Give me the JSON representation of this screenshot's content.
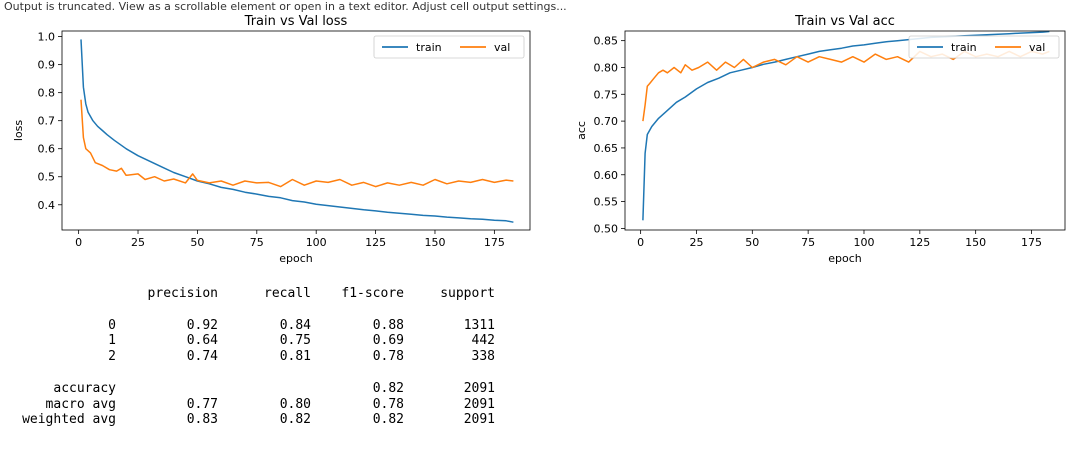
{
  "caption": "Output is truncated. View as a scrollable element or open in a text editor. Adjust cell output settings...",
  "chart_data": [
    {
      "type": "line",
      "title": "Train vs Val loss",
      "xlabel": "epoch",
      "ylabel": "loss",
      "xlim": [
        -7,
        190
      ],
      "ylim": [
        0.31,
        1.02
      ],
      "xticks": [
        0,
        25,
        50,
        75,
        100,
        125,
        150,
        175
      ],
      "yticks": [
        0.4,
        0.5,
        0.6,
        0.7,
        0.8,
        0.9,
        1.0
      ],
      "ytick_labels": [
        "0.4",
        "0.5",
        "0.6",
        "0.7",
        "0.8",
        "0.9",
        "1.0"
      ],
      "grid": false,
      "legend_position": "top-right",
      "series": [
        {
          "name": "train",
          "color": "#1f77b4",
          "points": [
            [
              1,
              0.99
            ],
            [
              2,
              0.82
            ],
            [
              3,
              0.76
            ],
            [
              4,
              0.73
            ],
            [
              6,
              0.7
            ],
            [
              8,
              0.68
            ],
            [
              10,
              0.665
            ],
            [
              12,
              0.65
            ],
            [
              15,
              0.63
            ],
            [
              20,
              0.6
            ],
            [
              25,
              0.575
            ],
            [
              30,
              0.555
            ],
            [
              35,
              0.535
            ],
            [
              40,
              0.515
            ],
            [
              45,
              0.5
            ],
            [
              50,
              0.485
            ],
            [
              55,
              0.475
            ],
            [
              60,
              0.462
            ],
            [
              65,
              0.455
            ],
            [
              70,
              0.445
            ],
            [
              75,
              0.438
            ],
            [
              80,
              0.43
            ],
            [
              85,
              0.425
            ],
            [
              90,
              0.415
            ],
            [
              95,
              0.41
            ],
            [
              100,
              0.402
            ],
            [
              105,
              0.397
            ],
            [
              110,
              0.392
            ],
            [
              115,
              0.387
            ],
            [
              120,
              0.382
            ],
            [
              125,
              0.378
            ],
            [
              130,
              0.373
            ],
            [
              135,
              0.37
            ],
            [
              140,
              0.366
            ],
            [
              145,
              0.362
            ],
            [
              150,
              0.36
            ],
            [
              155,
              0.356
            ],
            [
              160,
              0.353
            ],
            [
              165,
              0.35
            ],
            [
              170,
              0.348
            ],
            [
              175,
              0.345
            ],
            [
              180,
              0.343
            ],
            [
              183,
              0.338
            ]
          ]
        },
        {
          "name": "val",
          "color": "#ff7f0e",
          "points": [
            [
              1,
              0.775
            ],
            [
              2,
              0.64
            ],
            [
              3,
              0.6
            ],
            [
              5,
              0.585
            ],
            [
              7,
              0.55
            ],
            [
              10,
              0.54
            ],
            [
              13,
              0.525
            ],
            [
              16,
              0.52
            ],
            [
              18,
              0.53
            ],
            [
              20,
              0.505
            ],
            [
              25,
              0.51
            ],
            [
              28,
              0.49
            ],
            [
              32,
              0.5
            ],
            [
              36,
              0.485
            ],
            [
              40,
              0.492
            ],
            [
              45,
              0.478
            ],
            [
              48,
              0.51
            ],
            [
              50,
              0.487
            ],
            [
              55,
              0.478
            ],
            [
              60,
              0.485
            ],
            [
              65,
              0.47
            ],
            [
              70,
              0.485
            ],
            [
              75,
              0.478
            ],
            [
              80,
              0.48
            ],
            [
              85,
              0.465
            ],
            [
              90,
              0.49
            ],
            [
              95,
              0.47
            ],
            [
              100,
              0.485
            ],
            [
              105,
              0.48
            ],
            [
              110,
              0.49
            ],
            [
              115,
              0.47
            ],
            [
              120,
              0.48
            ],
            [
              125,
              0.465
            ],
            [
              130,
              0.478
            ],
            [
              135,
              0.47
            ],
            [
              140,
              0.48
            ],
            [
              145,
              0.47
            ],
            [
              150,
              0.49
            ],
            [
              155,
              0.475
            ],
            [
              160,
              0.485
            ],
            [
              165,
              0.48
            ],
            [
              170,
              0.49
            ],
            [
              175,
              0.48
            ],
            [
              180,
              0.488
            ],
            [
              183,
              0.485
            ]
          ]
        }
      ]
    },
    {
      "type": "line",
      "title": "Train vs Val acc",
      "xlabel": "epoch",
      "ylabel": "acc",
      "xlim": [
        -7,
        190
      ],
      "ylim": [
        0.497,
        0.868
      ],
      "xticks": [
        0,
        25,
        50,
        75,
        100,
        125,
        150,
        175
      ],
      "yticks": [
        0.5,
        0.55,
        0.6,
        0.65,
        0.7,
        0.75,
        0.8,
        0.85
      ],
      "ytick_labels": [
        "0.50",
        "0.55",
        "0.60",
        "0.65",
        "0.70",
        "0.75",
        "0.80",
        "0.85"
      ],
      "grid": false,
      "legend_position": "top-right",
      "series": [
        {
          "name": "train",
          "color": "#1f77b4",
          "points": [
            [
              1,
              0.515
            ],
            [
              2,
              0.64
            ],
            [
              3,
              0.675
            ],
            [
              5,
              0.69
            ],
            [
              8,
              0.705
            ],
            [
              12,
              0.72
            ],
            [
              16,
              0.735
            ],
            [
              20,
              0.745
            ],
            [
              25,
              0.76
            ],
            [
              30,
              0.772
            ],
            [
              35,
              0.78
            ],
            [
              40,
              0.79
            ],
            [
              45,
              0.795
            ],
            [
              50,
              0.8
            ],
            [
              55,
              0.806
            ],
            [
              60,
              0.81
            ],
            [
              65,
              0.815
            ],
            [
              70,
              0.82
            ],
            [
              75,
              0.825
            ],
            [
              80,
              0.83
            ],
            [
              85,
              0.833
            ],
            [
              90,
              0.836
            ],
            [
              95,
              0.84
            ],
            [
              100,
              0.842
            ],
            [
              105,
              0.845
            ],
            [
              110,
              0.848
            ],
            [
              115,
              0.85
            ],
            [
              120,
              0.852
            ],
            [
              125,
              0.854
            ],
            [
              130,
              0.856
            ],
            [
              135,
              0.857
            ],
            [
              140,
              0.858
            ],
            [
              145,
              0.859
            ],
            [
              150,
              0.86
            ],
            [
              155,
              0.861
            ],
            [
              160,
              0.862
            ],
            [
              165,
              0.863
            ],
            [
              170,
              0.864
            ],
            [
              175,
              0.865
            ],
            [
              180,
              0.866
            ],
            [
              183,
              0.867
            ]
          ]
        },
        {
          "name": "val",
          "color": "#ff7f0e",
          "points": [
            [
              1,
              0.7
            ],
            [
              2,
              0.73
            ],
            [
              3,
              0.765
            ],
            [
              4,
              0.77
            ],
            [
              6,
              0.78
            ],
            [
              8,
              0.79
            ],
            [
              10,
              0.795
            ],
            [
              12,
              0.79
            ],
            [
              15,
              0.8
            ],
            [
              18,
              0.79
            ],
            [
              20,
              0.805
            ],
            [
              23,
              0.795
            ],
            [
              26,
              0.8
            ],
            [
              30,
              0.81
            ],
            [
              34,
              0.795
            ],
            [
              38,
              0.81
            ],
            [
              42,
              0.8
            ],
            [
              46,
              0.815
            ],
            [
              50,
              0.8
            ],
            [
              55,
              0.81
            ],
            [
              60,
              0.815
            ],
            [
              65,
              0.805
            ],
            [
              70,
              0.82
            ],
            [
              75,
              0.81
            ],
            [
              80,
              0.82
            ],
            [
              85,
              0.815
            ],
            [
              90,
              0.81
            ],
            [
              95,
              0.82
            ],
            [
              100,
              0.81
            ],
            [
              105,
              0.825
            ],
            [
              110,
              0.815
            ],
            [
              115,
              0.82
            ],
            [
              120,
              0.81
            ],
            [
              125,
              0.83
            ],
            [
              130,
              0.82
            ],
            [
              135,
              0.825
            ],
            [
              140,
              0.815
            ],
            [
              145,
              0.83
            ],
            [
              150,
              0.82
            ],
            [
              155,
              0.825
            ],
            [
              160,
              0.82
            ],
            [
              165,
              0.83
            ],
            [
              170,
              0.82
            ],
            [
              175,
              0.83
            ],
            [
              180,
              0.825
            ],
            [
              183,
              0.83
            ]
          ]
        }
      ]
    }
  ],
  "report": {
    "headers": [
      "",
      "precision",
      "recall",
      "f1-score",
      "support"
    ],
    "rows": [
      [
        "0",
        "0.92",
        "0.84",
        "0.88",
        "1311"
      ],
      [
        "1",
        "0.64",
        "0.75",
        "0.69",
        "442"
      ],
      [
        "2",
        "0.74",
        "0.81",
        "0.78",
        "338"
      ],
      null,
      [
        "accuracy",
        "",
        "",
        "0.82",
        "2091"
      ],
      [
        "macro avg",
        "0.77",
        "0.80",
        "0.78",
        "2091"
      ],
      [
        "weighted avg",
        "0.83",
        "0.82",
        "0.82",
        "2091"
      ]
    ]
  }
}
